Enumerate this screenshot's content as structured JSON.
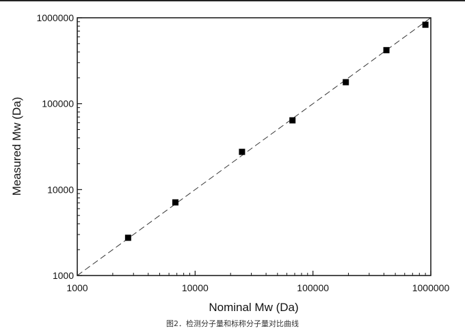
{
  "caption": "图2．检测分子量和标称分子量对比曲线",
  "chart_data": {
    "type": "scatter",
    "xlabel": "Nominal Mw (Da)",
    "ylabel": "Measured Mw (Da)",
    "xscale": "log",
    "yscale": "log",
    "xlim": [
      1000,
      1000000
    ],
    "ylim": [
      1000,
      1000000
    ],
    "xticks": [
      {
        "value": 1000,
        "label": "1000"
      },
      {
        "value": 10000,
        "label": "10000"
      },
      {
        "value": 100000,
        "label": "100000"
      },
      {
        "value": 1000000,
        "label": "1000000"
      }
    ],
    "yticks": [
      {
        "value": 1000,
        "label": "1000"
      },
      {
        "value": 10000,
        "label": "10000"
      },
      {
        "value": 100000,
        "label": "100000"
      },
      {
        "value": 1000000,
        "label": "1000000"
      }
    ],
    "series": [
      {
        "marker": "square",
        "color": "#000000",
        "points": [
          {
            "x": 2700,
            "y": 2750
          },
          {
            "x": 6800,
            "y": 7100
          },
          {
            "x": 25000,
            "y": 27500
          },
          {
            "x": 67000,
            "y": 64000
          },
          {
            "x": 190000,
            "y": 178000
          },
          {
            "x": 420000,
            "y": 420000
          },
          {
            "x": 900000,
            "y": 830000
          }
        ]
      }
    ],
    "reference_line": {
      "from": [
        1000,
        1000
      ],
      "to": [
        1000000,
        1000000
      ],
      "style": "dashed"
    },
    "grid": false,
    "legend": "none"
  }
}
